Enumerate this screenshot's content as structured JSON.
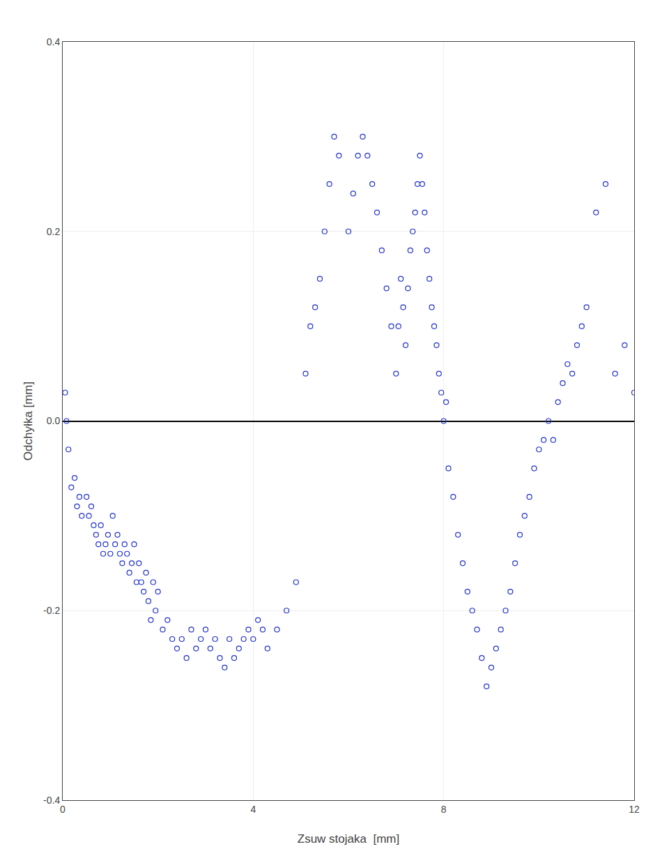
{
  "chart_data": {
    "type": "scatter",
    "xlabel": "Zsuw stojaka  [mm]",
    "ylabel": "Odchyłka [mm]",
    "x": [
      0.05,
      0.08,
      0.12,
      0.18,
      0.25,
      0.3,
      0.35,
      0.4,
      0.5,
      0.55,
      0.6,
      0.65,
      0.7,
      0.75,
      0.8,
      0.85,
      0.9,
      0.95,
      1.0,
      1.05,
      1.1,
      1.15,
      1.2,
      1.25,
      1.3,
      1.35,
      1.4,
      1.45,
      1.5,
      1.55,
      1.6,
      1.65,
      1.7,
      1.75,
      1.8,
      1.85,
      1.9,
      1.95,
      2.0,
      2.1,
      2.2,
      2.3,
      2.4,
      2.5,
      2.6,
      2.7,
      2.8,
      2.9,
      3.0,
      3.1,
      3.2,
      3.3,
      3.4,
      3.5,
      3.6,
      3.7,
      3.8,
      3.9,
      4.0,
      4.1,
      4.2,
      4.3,
      4.5,
      4.7,
      4.9,
      5.1,
      5.2,
      5.3,
      5.4,
      5.5,
      5.6,
      5.7,
      5.8,
      6.0,
      6.1,
      6.2,
      6.3,
      6.4,
      6.5,
      6.6,
      6.7,
      6.8,
      6.9,
      7.0,
      7.05,
      7.1,
      7.15,
      7.2,
      7.25,
      7.3,
      7.35,
      7.4,
      7.45,
      7.5,
      7.55,
      7.6,
      7.65,
      7.7,
      7.75,
      7.8,
      7.85,
      7.9,
      7.95,
      8.0,
      8.05,
      8.1,
      8.2,
      8.3,
      8.4,
      8.5,
      8.6,
      8.7,
      8.8,
      8.9,
      9.0,
      9.1,
      9.2,
      9.3,
      9.4,
      9.5,
      9.6,
      9.7,
      9.8,
      9.9,
      10.0,
      10.1,
      10.2,
      10.3,
      10.4,
      10.5,
      10.6,
      10.7,
      10.8,
      10.9,
      11.0,
      11.2,
      11.4,
      11.6,
      11.8,
      12.0
    ],
    "values": [
      0.03,
      0.0,
      -0.03,
      -0.07,
      -0.06,
      -0.09,
      -0.08,
      -0.1,
      -0.08,
      -0.1,
      -0.09,
      -0.11,
      -0.12,
      -0.13,
      -0.11,
      -0.14,
      -0.13,
      -0.12,
      -0.14,
      -0.1,
      -0.13,
      -0.12,
      -0.14,
      -0.15,
      -0.13,
      -0.14,
      -0.16,
      -0.15,
      -0.13,
      -0.17,
      -0.15,
      -0.17,
      -0.18,
      -0.16,
      -0.19,
      -0.21,
      -0.17,
      -0.2,
      -0.18,
      -0.22,
      -0.21,
      -0.23,
      -0.24,
      -0.23,
      -0.25,
      -0.22,
      -0.24,
      -0.23,
      -0.22,
      -0.24,
      -0.23,
      -0.25,
      -0.26,
      -0.23,
      -0.25,
      -0.24,
      -0.23,
      -0.22,
      -0.23,
      -0.21,
      -0.22,
      -0.24,
      -0.22,
      -0.2,
      -0.17,
      0.05,
      0.1,
      0.12,
      0.15,
      0.2,
      0.25,
      0.3,
      0.28,
      0.2,
      0.24,
      0.28,
      0.3,
      0.28,
      0.25,
      0.22,
      0.18,
      0.14,
      0.1,
      0.05,
      0.1,
      0.15,
      0.12,
      0.08,
      0.14,
      0.18,
      0.2,
      0.22,
      0.25,
      0.28,
      0.25,
      0.22,
      0.18,
      0.15,
      0.12,
      0.1,
      0.08,
      0.05,
      0.03,
      0.0,
      0.02,
      -0.05,
      -0.08,
      -0.12,
      -0.15,
      -0.18,
      -0.2,
      -0.22,
      -0.25,
      -0.28,
      -0.26,
      -0.24,
      -0.22,
      -0.2,
      -0.18,
      -0.15,
      -0.12,
      -0.1,
      -0.08,
      -0.05,
      -0.03,
      -0.02,
      0.0,
      -0.02,
      0.02,
      0.04,
      0.06,
      0.05,
      0.08,
      0.1,
      0.12,
      0.22,
      0.25,
      0.05,
      0.08,
      0.03
    ],
    "color": "#2233cc",
    "marker": "circle-open",
    "xlim": [
      0,
      12
    ],
    "ylim": [
      -0.4,
      0.4
    ],
    "xticks": [
      0,
      4,
      8,
      12
    ],
    "yticks": [
      -0.4,
      -0.2,
      {
        "value": 0,
        "label": "0.0"
      },
      0.2,
      0.4
    ],
    "grid": true
  }
}
